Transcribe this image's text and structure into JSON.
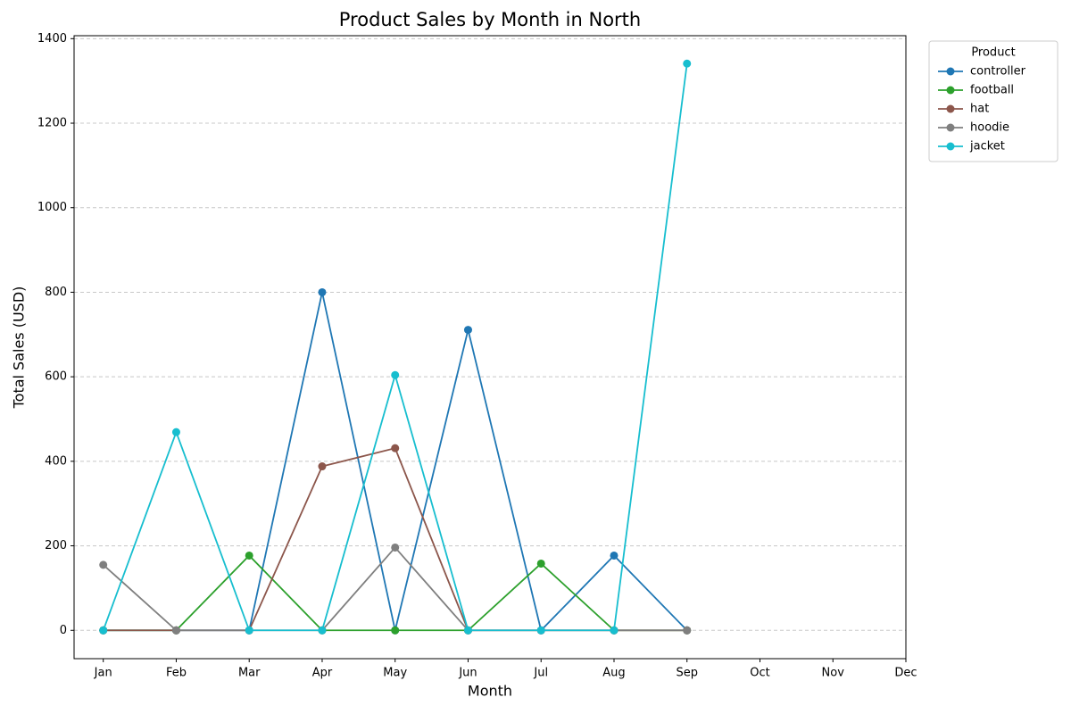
{
  "chart_data": {
    "type": "line",
    "title": "Product Sales by Month in North",
    "x_label": "Month",
    "y_label": "Total Sales (USD)",
    "categories": [
      "Jan",
      "Feb",
      "Mar",
      "Apr",
      "May",
      "Jun",
      "Jul",
      "Aug",
      "Sep",
      "Oct",
      "Nov",
      "Dec"
    ],
    "series": [
      {
        "name": "controller",
        "color": "#1f77b4",
        "values": [
          0,
          0,
          0,
          800,
          0,
          711,
          0,
          177,
          0,
          null,
          null,
          null
        ]
      },
      {
        "name": "football",
        "color": "#2ca02c",
        "values": [
          0,
          0,
          177,
          0,
          0,
          0,
          158,
          0,
          0,
          null,
          null,
          null
        ]
      },
      {
        "name": "hat",
        "color": "#8c564b",
        "values": [
          0,
          0,
          0,
          388,
          431,
          0,
          0,
          0,
          0,
          null,
          null,
          null
        ]
      },
      {
        "name": "hoodie",
        "color": "#7f7f7f",
        "values": [
          155,
          0,
          0,
          0,
          196,
          0,
          0,
          0,
          0,
          null,
          null,
          null
        ]
      },
      {
        "name": "jacket",
        "color": "#17becf",
        "values": [
          0,
          469,
          0,
          0,
          604,
          0,
          0,
          0,
          1341,
          null,
          null,
          null
        ]
      }
    ],
    "ylim": [
      -67,
      1407
    ],
    "yticks": [
      0,
      200,
      400,
      600,
      800,
      1000,
      1200,
      1400
    ],
    "grid": true,
    "legend": {
      "title": "Product",
      "position": "outside-upper-right"
    }
  }
}
